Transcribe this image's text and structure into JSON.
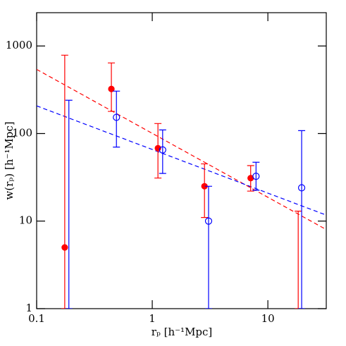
{
  "chart_data": {
    "type": "scatter",
    "xlog": true,
    "ylog": true,
    "xlim": [
      0.1,
      32
    ],
    "ylim": [
      1,
      2400
    ],
    "xticks": [
      0.1,
      1,
      10
    ],
    "yticks": [
      1,
      10,
      100,
      1000
    ],
    "x_label": "rₚ [h⁻¹Mpc]",
    "y_label": "w(rₚ) [h⁻¹Mpc]",
    "series": [
      {
        "color": "#ff0000",
        "marker": "filled",
        "x": [
          0.175,
          0.443,
          1.12,
          2.83,
          7.1,
          18.3
        ],
        "values": [
          5,
          323,
          68,
          25,
          31,
          null
        ],
        "y_low": [
          1,
          179,
          31,
          11,
          22,
          1
        ],
        "y_high": [
          785,
          640,
          130,
          45,
          43,
          13
        ]
      },
      {
        "color": "#0000ff",
        "marker": "open",
        "x": [
          0.19,
          0.49,
          1.23,
          3.07,
          7.9,
          19.6
        ],
        "values": [
          null,
          153,
          65,
          10,
          32.5,
          24
        ],
        "y_low": [
          1,
          70,
          35,
          1,
          22.5,
          1
        ],
        "y_high": [
          240,
          305,
          110,
          25,
          47,
          108
        ]
      }
    ],
    "fits": [
      {
        "color": "#ff0000",
        "dashed": true,
        "x": [
          0.1,
          32
        ],
        "values": [
          540,
          8
        ]
      },
      {
        "color": "#0000ff",
        "dashed": true,
        "x": [
          0.1,
          32
        ],
        "values": [
          207,
          11.7
        ]
      }
    ]
  }
}
